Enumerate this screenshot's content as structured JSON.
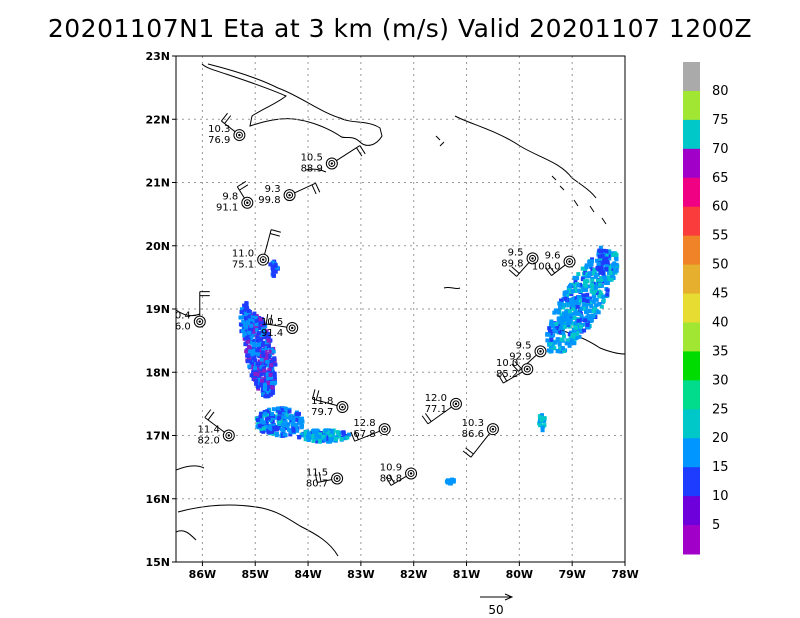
{
  "title": "20201107N1 Eta at 3 km (m/s) Valid 20201107 1200Z",
  "chart_data": {
    "type": "map",
    "title": "20201107N1 Eta at 3 km (m/s) Valid 20201107 1200Z",
    "xlim": [
      -86.5,
      -78.0
    ],
    "ylim": [
      15.0,
      23.0
    ],
    "x_ticks": [
      {
        "value": -86,
        "label": "86W"
      },
      {
        "value": -85,
        "label": "85W"
      },
      {
        "value": -84,
        "label": "84W"
      },
      {
        "value": -83,
        "label": "83W"
      },
      {
        "value": -82,
        "label": "82W"
      },
      {
        "value": -81,
        "label": "81W"
      },
      {
        "value": -80,
        "label": "80W"
      },
      {
        "value": -79,
        "label": "79W"
      },
      {
        "value": -78,
        "label": "78W"
      }
    ],
    "y_ticks": [
      {
        "value": 15,
        "label": "15N"
      },
      {
        "value": 16,
        "label": "16N"
      },
      {
        "value": 17,
        "label": "17N"
      },
      {
        "value": 18,
        "label": "18N"
      },
      {
        "value": 19,
        "label": "19N"
      },
      {
        "value": 20,
        "label": "20N"
      },
      {
        "value": 21,
        "label": "21N"
      },
      {
        "value": 22,
        "label": "22N"
      },
      {
        "value": 23,
        "label": "23N"
      }
    ],
    "grid": true,
    "observations": [
      {
        "lon": -85.3,
        "lat": 21.75,
        "top": "10.3",
        "bottom": "76.9"
      },
      {
        "lon": -83.55,
        "lat": 21.3,
        "top": "10.5",
        "bottom": "88.9"
      },
      {
        "lon": -84.35,
        "lat": 20.8,
        "top": "9.3",
        "bottom": "99.8"
      },
      {
        "lon": -85.15,
        "lat": 20.68,
        "top": "9.8",
        "bottom": "91.1"
      },
      {
        "lon": -84.85,
        "lat": 19.78,
        "top": "11.0",
        "bottom": "75.1"
      },
      {
        "lon": -86.05,
        "lat": 18.8,
        "top": "0.4",
        "bottom": "6.0"
      },
      {
        "lon": -84.3,
        "lat": 18.7,
        "top": "10.5",
        "bottom": "91.4"
      },
      {
        "lon": -83.35,
        "lat": 17.45,
        "top": "11.8",
        "bottom": "79.7"
      },
      {
        "lon": -85.5,
        "lat": 17.0,
        "top": "11.4",
        "bottom": "82.0"
      },
      {
        "lon": -82.55,
        "lat": 17.1,
        "top": "12.8",
        "bottom": "67.8"
      },
      {
        "lon": -83.45,
        "lat": 16.32,
        "top": "11.5",
        "bottom": "80.7"
      },
      {
        "lon": -81.2,
        "lat": 17.5,
        "top": "12.0",
        "bottom": "77.1"
      },
      {
        "lon": -80.5,
        "lat": 17.1,
        "top": "10.3",
        "bottom": "86.6"
      },
      {
        "lon": -82.05,
        "lat": 16.4,
        "top": "10.9",
        "bottom": "89.8"
      },
      {
        "lon": -79.75,
        "lat": 19.8,
        "top": "9.5",
        "bottom": "89.8"
      },
      {
        "lon": -79.05,
        "lat": 19.75,
        "top": "9.6",
        "bottom": "100.0"
      },
      {
        "lon": -79.6,
        "lat": 18.33,
        "top": "9.5",
        "bottom": "92.9"
      },
      {
        "lon": -79.85,
        "lat": 18.05,
        "top": "10.0",
        "bottom": "85.2"
      }
    ],
    "colorbar": {
      "levels": [
        "5",
        "10",
        "15",
        "20",
        "25",
        "30",
        "35",
        "40",
        "45",
        "50",
        "55",
        "60",
        "65",
        "70",
        "75",
        "80"
      ],
      "colors": [
        "#a000c8",
        "#6e00dc",
        "#1e3cff",
        "#0096ff",
        "#00c8c8",
        "#00dc8c",
        "#00dc00",
        "#a0e632",
        "#e6dc32",
        "#e6af2d",
        "#f08228",
        "#fa3c3c",
        "#f00082",
        "#a000c8",
        "#00c8c8",
        "#a0e632",
        "#aaaaaa"
      ]
    },
    "reference_vector": {
      "label": "50"
    }
  }
}
